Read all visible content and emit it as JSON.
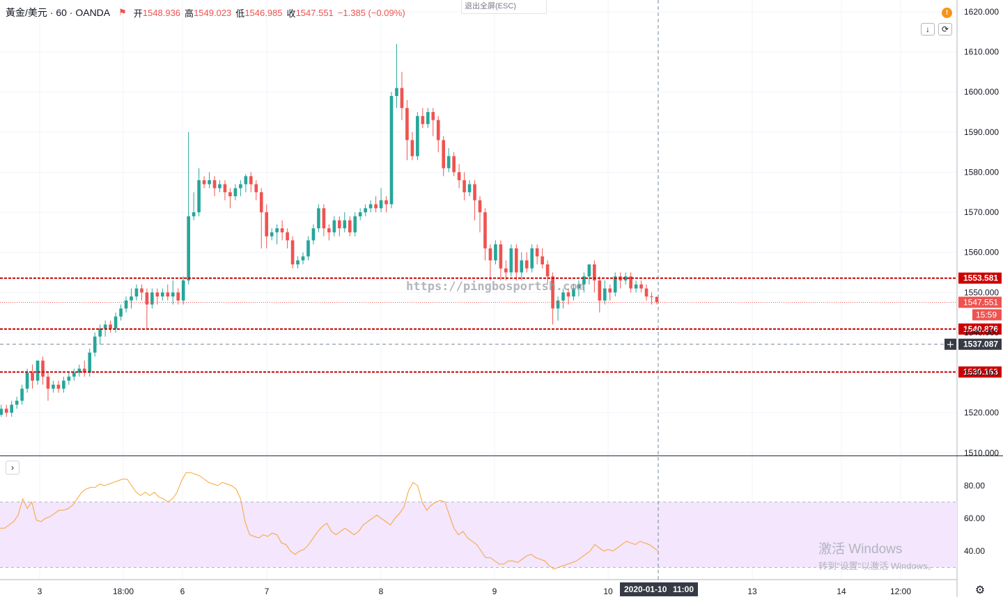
{
  "legend": {
    "symbol": "黃金/美元 · 60 · OANDA",
    "open_label": "开",
    "open": "1548.936",
    "high_label": "高",
    "high": "1549.023",
    "low_label": "低",
    "low": "1546.985",
    "close_label": "收",
    "close": "1547.551",
    "change": "−1.385 (−0.09%)"
  },
  "esc_button": "退出全屏(ESC)",
  "alert_icon": "!",
  "watermark_text": "https://pingbosportsh.com",
  "windows_activation": {
    "title": "激活 Windows",
    "subtitle": "转到\"设置\"以激活 Windows。"
  },
  "crosshair": {
    "date_label": "2020-01-10",
    "time_label": "11:00",
    "price_label": "1537.087"
  },
  "colors": {
    "up": "#26a69a",
    "down": "#ef5350",
    "level_line": "#cc0000",
    "rsi": "#f7a434",
    "rsi_band": "#f3e6fd"
  },
  "icons": [
    "down-arrow-icon",
    "refresh-icon",
    "chevron-right-icon",
    "gear-icon",
    "flag-icon",
    "alert-icon",
    "crosshair-plus-icon"
  ],
  "chart_data": [
    {
      "type": "candlestick",
      "title": "黃金/美元 · 60 · OANDA",
      "x_ticks": [
        "3",
        "18:00",
        "6",
        "7",
        "8",
        "9",
        "10",
        "13",
        "14",
        "12:00"
      ],
      "y_ticks": [
        "1510.000",
        "1520.000",
        "1530.000",
        "1540.000",
        "1550.000",
        "1560.000",
        "1570.000",
        "1580.000",
        "1590.000",
        "1600.000",
        "1610.000",
        "1620.000"
      ],
      "ylim": [
        1510,
        1621
      ],
      "last_price": "1547.551",
      "countdown": "15:59",
      "horizontal_levels": [
        "1553.581",
        "1540.876",
        "1530.163"
      ],
      "candles": [
        [
          1519.5,
          1521,
          1519,
          1522
        ],
        [
          1521,
          1520,
          1519,
          1522
        ],
        [
          1520,
          1522,
          1519,
          1523
        ],
        [
          1522,
          1523,
          1521,
          1524
        ],
        [
          1523,
          1526,
          1522,
          1527
        ],
        [
          1526,
          1530,
          1525,
          1531
        ],
        [
          1530,
          1528,
          1526,
          1532
        ],
        [
          1528,
          1533,
          1527,
          1533
        ],
        [
          1533,
          1529,
          1527,
          1534
        ],
        [
          1529,
          1526,
          1523,
          1530
        ],
        [
          1526,
          1527,
          1525,
          1528
        ],
        [
          1527,
          1526,
          1525,
          1528
        ],
        [
          1526,
          1528,
          1525,
          1529
        ],
        [
          1528,
          1529,
          1527,
          1530
        ],
        [
          1529,
          1530,
          1528,
          1531
        ],
        [
          1530,
          1531,
          1529,
          1532
        ],
        [
          1531,
          1530,
          1529,
          1533
        ],
        [
          1530,
          1535,
          1529,
          1536
        ],
        [
          1535,
          1539,
          1534,
          1540
        ],
        [
          1539,
          1541,
          1537,
          1542
        ],
        [
          1541,
          1542,
          1539,
          1543
        ],
        [
          1542,
          1541,
          1540,
          1543
        ],
        [
          1541,
          1544,
          1540,
          1545
        ],
        [
          1544,
          1546,
          1543,
          1547
        ],
        [
          1546,
          1548,
          1545,
          1549
        ],
        [
          1548,
          1549,
          1546,
          1551
        ],
        [
          1549,
          1551,
          1548,
          1552
        ],
        [
          1551,
          1550,
          1548,
          1552
        ],
        [
          1550,
          1547,
          1541,
          1551
        ],
        [
          1547,
          1550,
          1546,
          1551
        ],
        [
          1550,
          1549,
          1547,
          1551
        ],
        [
          1549,
          1550,
          1548,
          1551
        ],
        [
          1550,
          1549,
          1548,
          1552
        ],
        [
          1549,
          1550,
          1547,
          1553
        ],
        [
          1550,
          1548,
          1547,
          1551
        ],
        [
          1548,
          1553,
          1547,
          1554
        ],
        [
          1553,
          1569,
          1552,
          1590
        ],
        [
          1569,
          1570,
          1568,
          1575
        ],
        [
          1570,
          1578,
          1569,
          1581
        ],
        [
          1578,
          1577,
          1576,
          1579
        ],
        [
          1577,
          1578,
          1576,
          1580
        ],
        [
          1578,
          1576,
          1574,
          1579
        ],
        [
          1576,
          1577,
          1575,
          1578
        ],
        [
          1577,
          1575,
          1573,
          1578
        ],
        [
          1575,
          1574,
          1571,
          1576
        ],
        [
          1574,
          1576,
          1573,
          1577
        ],
        [
          1576,
          1577,
          1574,
          1578
        ],
        [
          1577,
          1579,
          1575,
          1579.5
        ],
        [
          1579,
          1577,
          1575,
          1580
        ],
        [
          1577,
          1575,
          1573,
          1578
        ],
        [
          1575,
          1570,
          1561,
          1576
        ],
        [
          1570,
          1564,
          1561,
          1572
        ],
        [
          1564,
          1565,
          1563,
          1566
        ],
        [
          1565,
          1566,
          1562,
          1567
        ],
        [
          1566,
          1565,
          1563,
          1568
        ],
        [
          1565,
          1563,
          1561,
          1566
        ],
        [
          1563,
          1557,
          1556,
          1564
        ],
        [
          1557,
          1558,
          1556,
          1559
        ],
        [
          1558,
          1559,
          1557,
          1560
        ],
        [
          1559,
          1563,
          1558,
          1564
        ],
        [
          1563,
          1566,
          1562,
          1567
        ],
        [
          1566,
          1571,
          1565,
          1572
        ],
        [
          1571,
          1566,
          1564,
          1572
        ],
        [
          1566,
          1565,
          1563,
          1567
        ],
        [
          1565,
          1568,
          1564,
          1569
        ],
        [
          1568,
          1566,
          1564,
          1569
        ],
        [
          1566,
          1568,
          1565,
          1570
        ],
        [
          1568,
          1565,
          1564,
          1569
        ],
        [
          1565,
          1569,
          1564,
          1570
        ],
        [
          1569,
          1570,
          1568,
          1571
        ],
        [
          1570,
          1571,
          1569,
          1572
        ],
        [
          1571,
          1572,
          1570,
          1573
        ],
        [
          1572,
          1571,
          1570,
          1574
        ],
        [
          1571,
          1573,
          1570,
          1576
        ],
        [
          1573,
          1572,
          1570,
          1574
        ],
        [
          1572,
          1599,
          1571,
          1600
        ],
        [
          1599,
          1601,
          1596,
          1612
        ],
        [
          1601,
          1596,
          1593,
          1605
        ],
        [
          1596,
          1588,
          1583,
          1598
        ],
        [
          1588,
          1584,
          1583,
          1590
        ],
        [
          1584,
          1594,
          1583,
          1595
        ],
        [
          1594,
          1592,
          1591,
          1596
        ],
        [
          1592,
          1595,
          1591,
          1596
        ],
        [
          1595,
          1593,
          1589,
          1596
        ],
        [
          1593,
          1588,
          1585,
          1594
        ],
        [
          1588,
          1581,
          1579,
          1589
        ],
        [
          1581,
          1584,
          1580,
          1586
        ],
        [
          1584,
          1580,
          1579,
          1585
        ],
        [
          1580,
          1578,
          1576,
          1582
        ],
        [
          1578,
          1575,
          1573,
          1580
        ],
        [
          1575,
          1577,
          1574,
          1578
        ],
        [
          1577,
          1573,
          1568,
          1578
        ],
        [
          1573,
          1570,
          1565,
          1574
        ],
        [
          1570,
          1561,
          1558,
          1571
        ],
        [
          1561,
          1558,
          1553,
          1562
        ],
        [
          1558,
          1562,
          1557,
          1563
        ],
        [
          1562,
          1556,
          1553,
          1563
        ],
        [
          1556,
          1555,
          1553,
          1558
        ],
        [
          1555,
          1561,
          1554,
          1562
        ],
        [
          1561,
          1555,
          1553,
          1562
        ],
        [
          1555,
          1558,
          1553,
          1560
        ],
        [
          1558,
          1556,
          1555,
          1560
        ],
        [
          1556,
          1561,
          1555,
          1562
        ],
        [
          1561,
          1559,
          1557,
          1562
        ],
        [
          1559,
          1557,
          1556,
          1561
        ],
        [
          1557,
          1554,
          1552,
          1558
        ],
        [
          1554,
          1546,
          1542,
          1555
        ],
        [
          1546,
          1548,
          1543,
          1549
        ],
        [
          1548,
          1550,
          1546,
          1551
        ],
        [
          1550,
          1549,
          1547,
          1551
        ],
        [
          1549,
          1551,
          1548,
          1552
        ],
        [
          1551,
          1552,
          1549,
          1553
        ],
        [
          1552,
          1554,
          1550,
          1555
        ],
        [
          1554,
          1557,
          1552,
          1557
        ],
        [
          1557,
          1553,
          1550,
          1558
        ],
        [
          1553,
          1548,
          1545,
          1554
        ],
        [
          1548,
          1551,
          1547,
          1553
        ],
        [
          1551,
          1550,
          1548,
          1552
        ],
        [
          1550,
          1554,
          1549,
          1555
        ],
        [
          1554,
          1553,
          1551,
          1555
        ],
        [
          1553,
          1554,
          1552,
          1555
        ],
        [
          1554,
          1551,
          1550,
          1555
        ],
        [
          1551,
          1552,
          1550,
          1553
        ],
        [
          1552,
          1551,
          1550,
          1553
        ],
        [
          1551,
          1549,
          1548,
          1552
        ],
        [
          1549,
          1548.9,
          1547,
          1550
        ],
        [
          1548.9,
          1547.6,
          1547,
          1549
        ]
      ]
    },
    {
      "type": "line",
      "title": "RSI",
      "y_ticks": [
        "40.00",
        "60.00",
        "80.00"
      ],
      "ylim": [
        27,
        91
      ],
      "band": [
        30,
        70
      ],
      "values": [
        54,
        54,
        56,
        58,
        62,
        72,
        66,
        70,
        59,
        58,
        60,
        61,
        63,
        65,
        65,
        66,
        68,
        72,
        76,
        78,
        79,
        79,
        81,
        80,
        81,
        82,
        83,
        84,
        84,
        80,
        76,
        74,
        76,
        74,
        76,
        73,
        72,
        70,
        72,
        76,
        83,
        88,
        88,
        87,
        86,
        84,
        82,
        81,
        80,
        82,
        81,
        80,
        78,
        72,
        58,
        50,
        49,
        48,
        50,
        49,
        51,
        50,
        45,
        44,
        40,
        38,
        40,
        41,
        44,
        48,
        52,
        55,
        57,
        52,
        50,
        52,
        54,
        52,
        50,
        52,
        56,
        58,
        60,
        62,
        60,
        58,
        56,
        60,
        63,
        67,
        77,
        82,
        80,
        70,
        65,
        68,
        70,
        71,
        70,
        62,
        54,
        50,
        52,
        48,
        46,
        44,
        40,
        36,
        36,
        34,
        32,
        32,
        34,
        34,
        33,
        35,
        37,
        38,
        36,
        35,
        34,
        31,
        29,
        30,
        31,
        32,
        33,
        34,
        36,
        38,
        40,
        44,
        42,
        40,
        41,
        40,
        42,
        44,
        46,
        45,
        44,
        46,
        45,
        44,
        42,
        40
      ]
    }
  ]
}
